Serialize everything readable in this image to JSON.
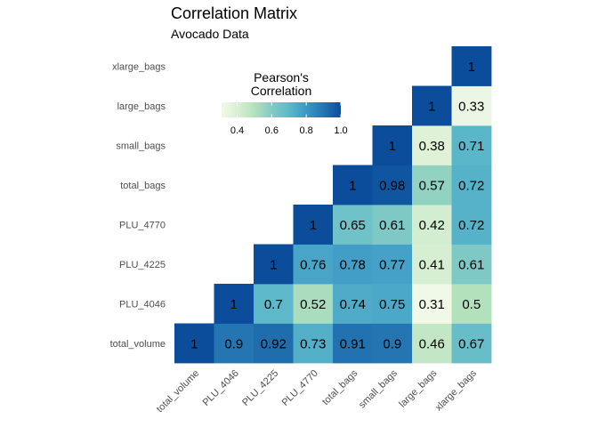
{
  "chart_data": {
    "type": "heatmap",
    "title": "Correlation Matrix",
    "subtitle": "Avocado Data",
    "variables": [
      "total_volume",
      "PLU_4046",
      "PLU_4225",
      "PLU_4770",
      "total_bags",
      "small_bags",
      "large_bags",
      "xlarge_bags"
    ],
    "cells": [
      {
        "row": "total_volume",
        "col": "total_volume",
        "value": 1
      },
      {
        "row": "total_volume",
        "col": "PLU_4046",
        "value": 0.9
      },
      {
        "row": "total_volume",
        "col": "PLU_4225",
        "value": 0.92
      },
      {
        "row": "total_volume",
        "col": "PLU_4770",
        "value": 0.73
      },
      {
        "row": "total_volume",
        "col": "total_bags",
        "value": 0.91
      },
      {
        "row": "total_volume",
        "col": "small_bags",
        "value": 0.9
      },
      {
        "row": "total_volume",
        "col": "large_bags",
        "value": 0.46
      },
      {
        "row": "total_volume",
        "col": "xlarge_bags",
        "value": 0.67
      },
      {
        "row": "PLU_4046",
        "col": "PLU_4046",
        "value": 1
      },
      {
        "row": "PLU_4046",
        "col": "PLU_4225",
        "value": 0.7
      },
      {
        "row": "PLU_4046",
        "col": "PLU_4770",
        "value": 0.52
      },
      {
        "row": "PLU_4046",
        "col": "total_bags",
        "value": 0.74
      },
      {
        "row": "PLU_4046",
        "col": "small_bags",
        "value": 0.75
      },
      {
        "row": "PLU_4046",
        "col": "large_bags",
        "value": 0.31
      },
      {
        "row": "PLU_4046",
        "col": "xlarge_bags",
        "value": 0.5
      },
      {
        "row": "PLU_4225",
        "col": "PLU_4225",
        "value": 1
      },
      {
        "row": "PLU_4225",
        "col": "PLU_4770",
        "value": 0.76
      },
      {
        "row": "PLU_4225",
        "col": "total_bags",
        "value": 0.78
      },
      {
        "row": "PLU_4225",
        "col": "small_bags",
        "value": 0.77
      },
      {
        "row": "PLU_4225",
        "col": "large_bags",
        "value": 0.41
      },
      {
        "row": "PLU_4225",
        "col": "xlarge_bags",
        "value": 0.61
      },
      {
        "row": "PLU_4770",
        "col": "PLU_4770",
        "value": 1
      },
      {
        "row": "PLU_4770",
        "col": "total_bags",
        "value": 0.65
      },
      {
        "row": "PLU_4770",
        "col": "small_bags",
        "value": 0.61
      },
      {
        "row": "PLU_4770",
        "col": "large_bags",
        "value": 0.42
      },
      {
        "row": "PLU_4770",
        "col": "xlarge_bags",
        "value": 0.72
      },
      {
        "row": "total_bags",
        "col": "total_bags",
        "value": 1
      },
      {
        "row": "total_bags",
        "col": "small_bags",
        "value": 0.98
      },
      {
        "row": "total_bags",
        "col": "large_bags",
        "value": 0.57
      },
      {
        "row": "total_bags",
        "col": "xlarge_bags",
        "value": 0.72
      },
      {
        "row": "small_bags",
        "col": "small_bags",
        "value": 1
      },
      {
        "row": "small_bags",
        "col": "large_bags",
        "value": 0.38
      },
      {
        "row": "small_bags",
        "col": "xlarge_bags",
        "value": 0.71
      },
      {
        "row": "large_bags",
        "col": "large_bags",
        "value": 1
      },
      {
        "row": "large_bags",
        "col": "xlarge_bags",
        "value": 0.33
      },
      {
        "row": "xlarge_bags",
        "col": "xlarge_bags",
        "value": 1
      }
    ],
    "legend": {
      "title_lines": [
        "Pearson's",
        "Correlation"
      ],
      "ticks": [
        0.4,
        0.6,
        0.8,
        1.0
      ],
      "tick_labels": [
        "0.4",
        "0.6",
        "0.8",
        "1.0"
      ],
      "range": [
        0.31,
        1.0
      ],
      "placement": "top-center"
    },
    "color_scale": {
      "name": "GnBu",
      "stops": [
        {
          "value": 0.31,
          "color": "#f0f9e8"
        },
        {
          "value": 0.4,
          "color": "#daf0d4"
        },
        {
          "value": 0.5,
          "color": "#b3e1bb"
        },
        {
          "value": 0.6,
          "color": "#82cbc4"
        },
        {
          "value": 0.7,
          "color": "#5db9c9"
        },
        {
          "value": 0.8,
          "color": "#3b97c6"
        },
        {
          "value": 0.9,
          "color": "#2475b2"
        },
        {
          "value": 1.0,
          "color": "#0b4d9a"
        }
      ]
    },
    "grid": false
  }
}
